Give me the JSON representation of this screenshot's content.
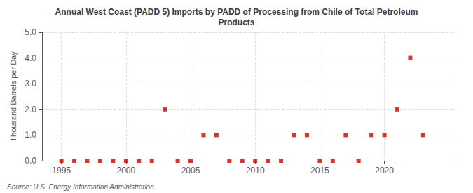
{
  "chart_data": {
    "type": "scatter",
    "title": "Annual West Coast (PADD 5) Imports by PADD of Processing from Chile of Total Petroleum\nProducts",
    "ylabel": "Thousand Barrels per Day",
    "source": "Source: U.S. Energy Information Administration",
    "x": [
      1995,
      1996,
      1997,
      1998,
      1999,
      2000,
      2001,
      2002,
      2003,
      2004,
      2005,
      2006,
      2007,
      2008,
      2009,
      2010,
      2011,
      2012,
      2013,
      2014,
      2015,
      2016,
      2017,
      2018,
      2019,
      2020,
      2021,
      2022,
      2023
    ],
    "values": [
      0.0,
      0.0,
      0.0,
      0.0,
      0.0,
      0.0,
      0.0,
      0.0,
      2.0,
      0.0,
      0.0,
      1.0,
      1.0,
      0.0,
      0.0,
      0.0,
      0.0,
      0.0,
      1.0,
      1.0,
      0.0,
      0.0,
      1.0,
      0.0,
      1.0,
      1.0,
      2.0,
      4.0,
      1.0
    ],
    "color": "#cc0000",
    "marker": "square",
    "xlim": [
      1993.5,
      2025.5
    ],
    "xticks": [
      1995,
      2000,
      2005,
      2010,
      2015,
      2020
    ],
    "ylim": [
      0.0,
      5.0
    ],
    "yticks": [
      {
        "value": 0,
        "label": "0.0"
      },
      {
        "value": 1,
        "label": "1.0"
      },
      {
        "value": 2,
        "label": "2.0"
      },
      {
        "value": 3,
        "label": "3.0"
      },
      {
        "value": 4,
        "label": "4.0"
      },
      {
        "value": 5,
        "label": "5.0"
      }
    ],
    "grid": true
  }
}
